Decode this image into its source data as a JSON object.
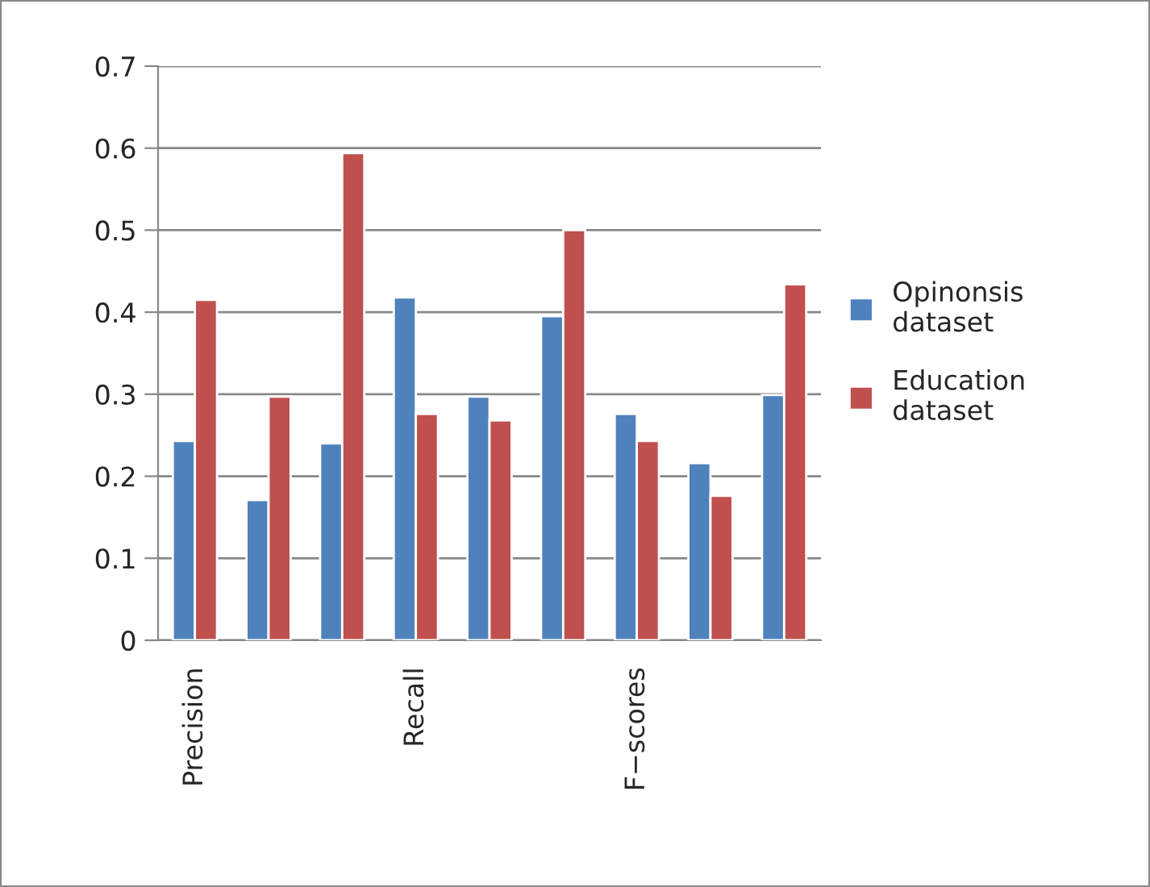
{
  "chart_data": {
    "type": "bar",
    "categories": [
      "Precision",
      null,
      null,
      "Recall",
      null,
      null,
      "F−scores",
      null,
      null
    ],
    "series": [
      {
        "name": "Opinonsis dataset",
        "color": "#4f81bd",
        "values": [
          0.243,
          0.171,
          0.24,
          0.418,
          0.297,
          0.395,
          0.276,
          0.216,
          0.299
        ]
      },
      {
        "name": "Education dataset",
        "color": "#c0504d",
        "values": [
          0.415,
          0.297,
          0.594,
          0.276,
          0.268,
          0.5,
          0.243,
          0.176,
          0.434
        ]
      }
    ],
    "ylim": [
      0,
      0.7
    ],
    "yticks": [
      0,
      0.1,
      0.2,
      0.3,
      0.4,
      0.5,
      0.6,
      0.7
    ],
    "grid": "y",
    "legend": "right"
  }
}
